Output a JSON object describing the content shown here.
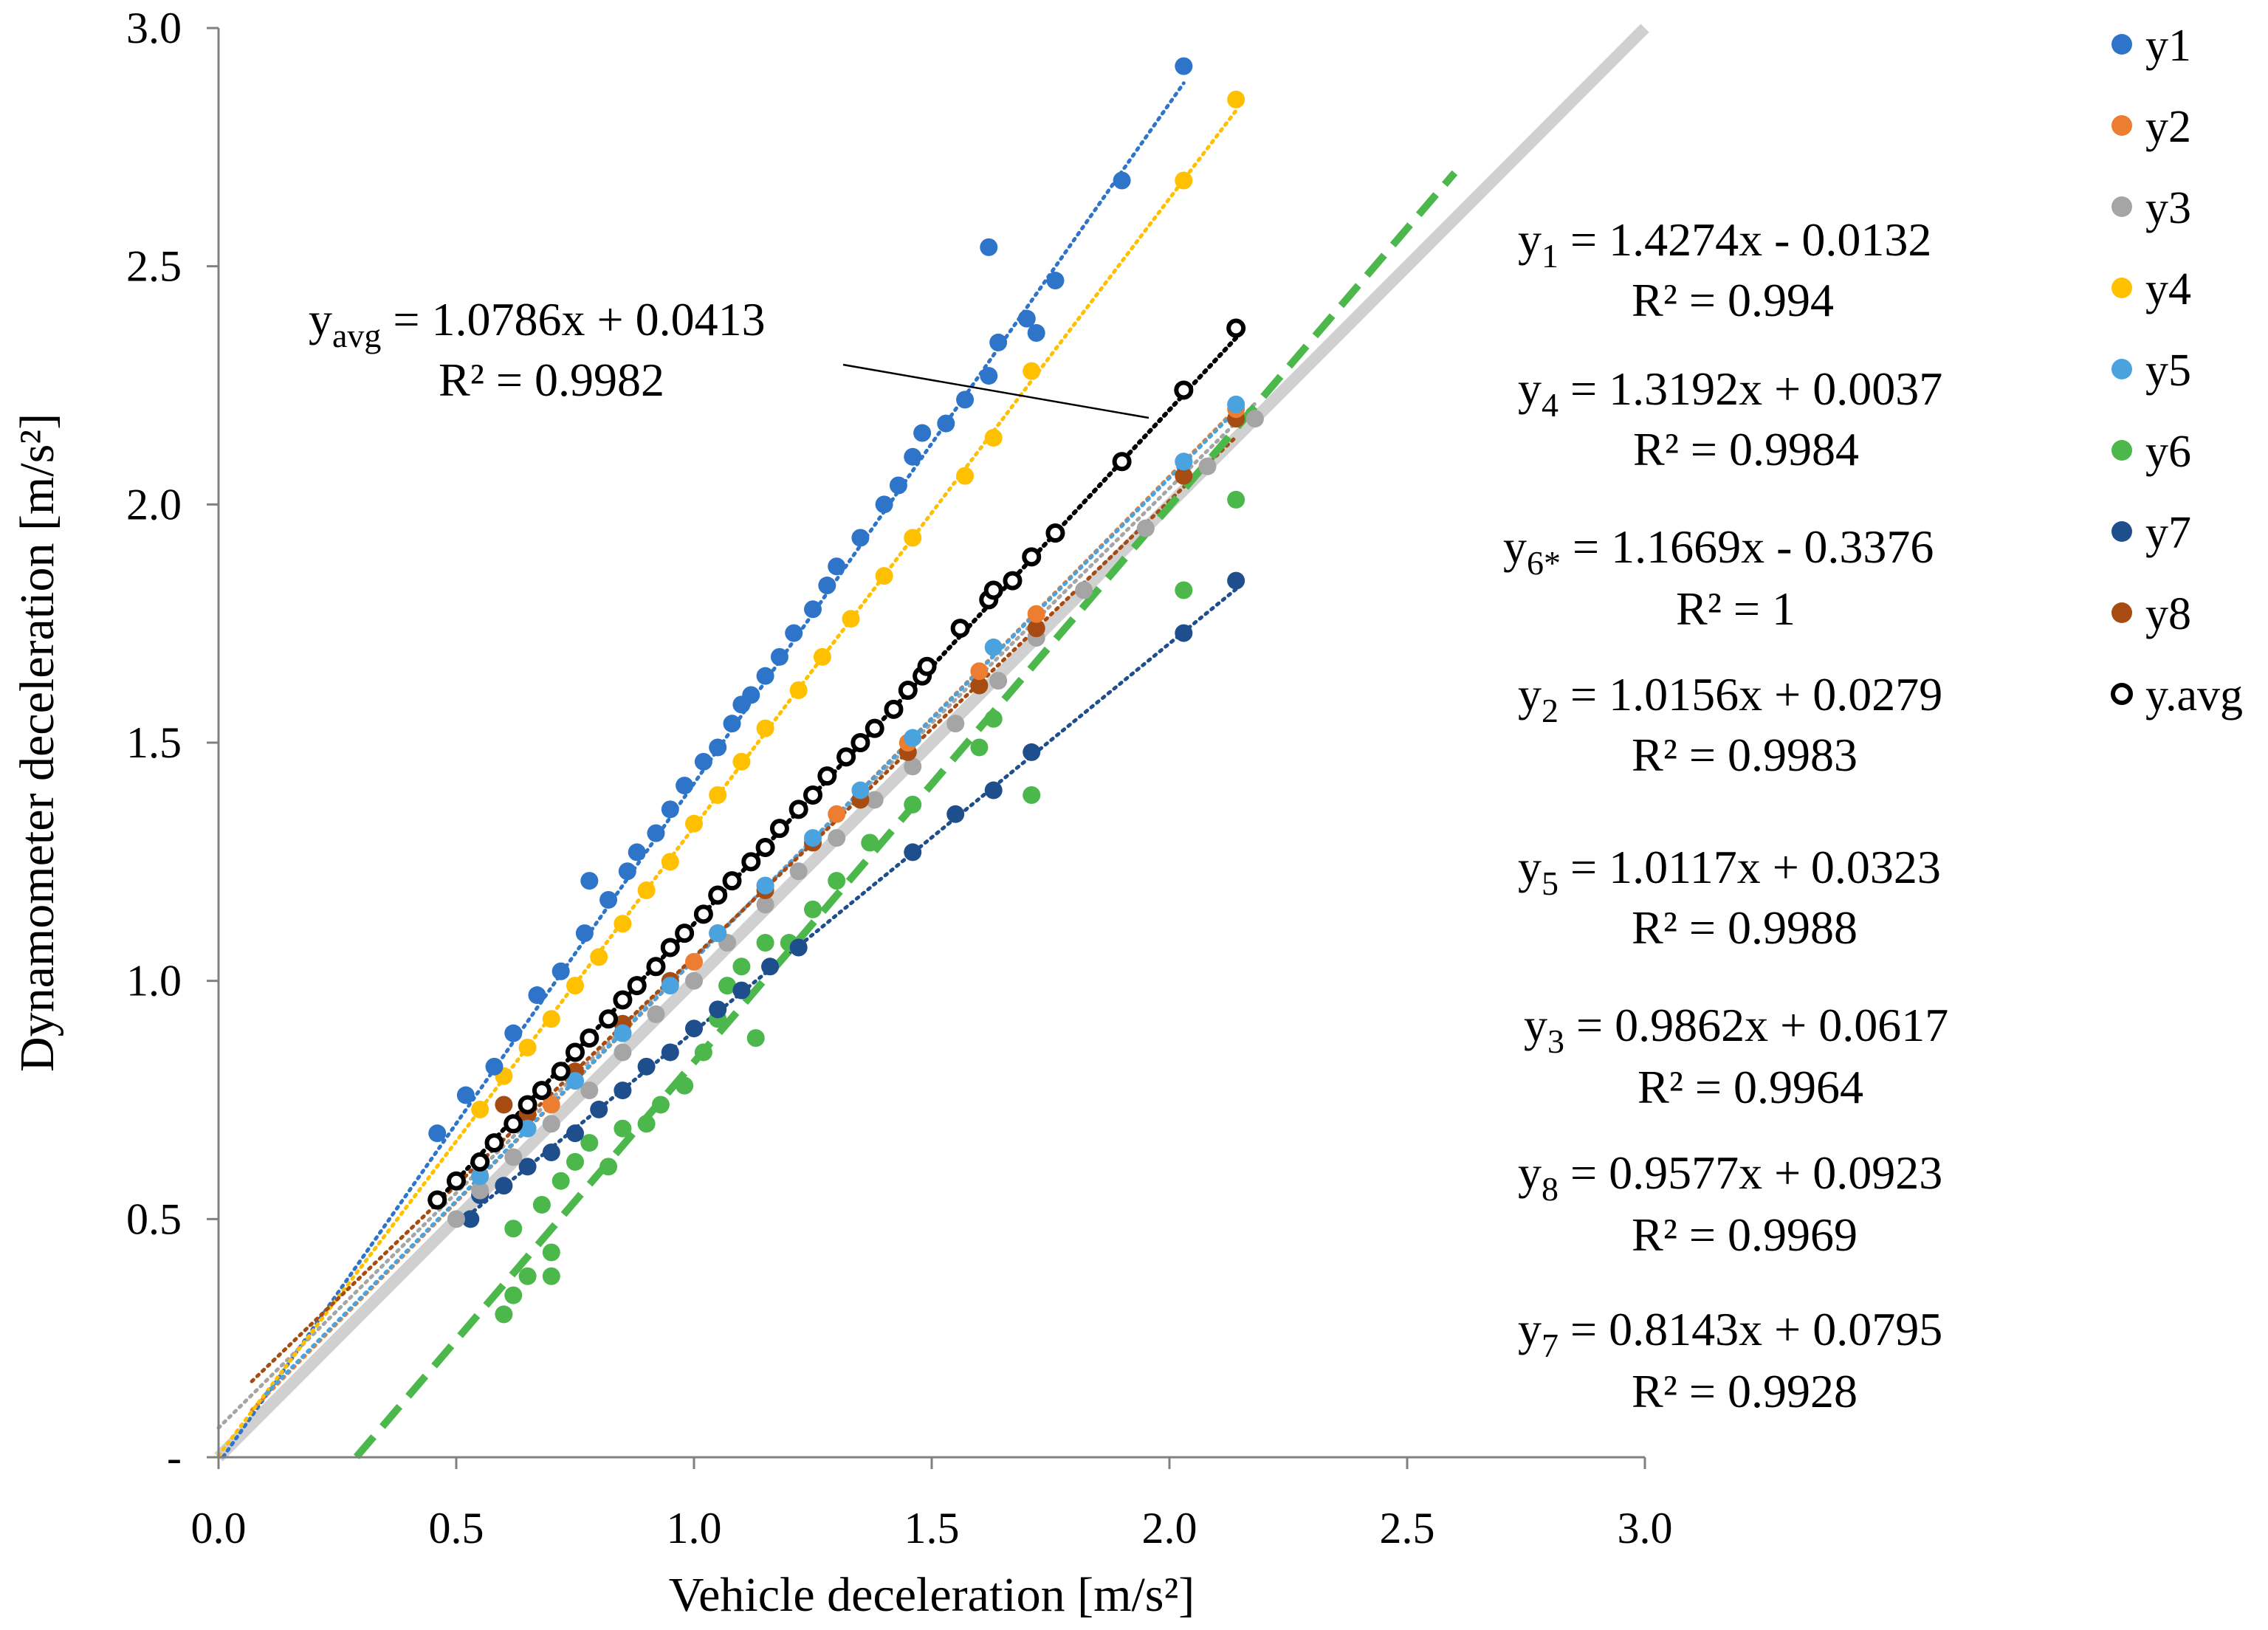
{
  "chart_data": {
    "type": "scatter",
    "xlabel": "Vehicle deceleration  [m/s²]",
    "ylabel": "Dynamometer deceleration [m/s²]",
    "xlim": [
      0,
      3
    ],
    "ylim": [
      0,
      3
    ],
    "xticks": [
      "0.0",
      "0.5",
      "1.0",
      "1.5",
      "2.0",
      "2.5",
      "3.0"
    ],
    "yticks": [
      "-",
      "0.5",
      "1.0",
      "1.5",
      "2.0",
      "2.5",
      "3.0"
    ],
    "grid": false,
    "legend_position": "right",
    "series": [
      {
        "name": "y1",
        "color": "#2E75C9",
        "marker": "filled-circle",
        "slope": 1.4274,
        "intercept": -0.0132,
        "r2": 0.994,
        "points": [
          [
            0.46,
            0.68
          ],
          [
            0.52,
            0.76
          ],
          [
            0.58,
            0.82
          ],
          [
            0.62,
            0.89
          ],
          [
            0.67,
            0.97
          ],
          [
            0.72,
            1.02
          ],
          [
            0.77,
            1.1
          ],
          [
            0.78,
            1.21
          ],
          [
            0.82,
            1.17
          ],
          [
            0.86,
            1.23
          ],
          [
            0.88,
            1.27
          ],
          [
            0.92,
            1.31
          ],
          [
            0.95,
            1.36
          ],
          [
            0.98,
            1.41
          ],
          [
            1.02,
            1.46
          ],
          [
            1.05,
            1.49
          ],
          [
            1.08,
            1.54
          ],
          [
            1.1,
            1.58
          ],
          [
            1.12,
            1.6
          ],
          [
            1.15,
            1.64
          ],
          [
            1.18,
            1.68
          ],
          [
            1.21,
            1.73
          ],
          [
            1.25,
            1.78
          ],
          [
            1.28,
            1.83
          ],
          [
            1.3,
            1.87
          ],
          [
            1.35,
            1.93
          ],
          [
            1.4,
            2.0
          ],
          [
            1.43,
            2.04
          ],
          [
            1.46,
            2.1
          ],
          [
            1.48,
            2.15
          ],
          [
            1.53,
            2.17
          ],
          [
            1.57,
            2.22
          ],
          [
            1.62,
            2.27
          ],
          [
            1.62,
            2.54
          ],
          [
            1.64,
            2.34
          ],
          [
            1.7,
            2.39
          ],
          [
            1.72,
            2.36
          ],
          [
            1.76,
            2.47
          ],
          [
            1.9,
            2.68
          ],
          [
            2.03,
            2.92
          ]
        ]
      },
      {
        "name": "y2",
        "color": "#ED7D31",
        "marker": "filled-circle",
        "slope": 1.0156,
        "intercept": 0.0279,
        "r2": 0.9983,
        "points": [
          [
            0.55,
            0.59
          ],
          [
            0.7,
            0.74
          ],
          [
            0.85,
            0.89
          ],
          [
            1.0,
            1.04
          ],
          [
            1.15,
            1.2
          ],
          [
            1.3,
            1.35
          ],
          [
            1.45,
            1.5
          ],
          [
            1.6,
            1.65
          ],
          [
            1.72,
            1.77
          ],
          [
            2.03,
            2.09
          ],
          [
            2.14,
            2.2
          ]
        ]
      },
      {
        "name": "y3",
        "color": "#A5A5A5",
        "marker": "filled-circle",
        "slope": 0.9862,
        "intercept": 0.0617,
        "r2": 0.9964,
        "points": [
          [
            0.5,
            0.5
          ],
          [
            0.55,
            0.56
          ],
          [
            0.62,
            0.63
          ],
          [
            0.7,
            0.7
          ],
          [
            0.78,
            0.77
          ],
          [
            0.85,
            0.85
          ],
          [
            0.92,
            0.93
          ],
          [
            1.0,
            1.0
          ],
          [
            1.07,
            1.08
          ],
          [
            1.15,
            1.16
          ],
          [
            1.22,
            1.23
          ],
          [
            1.3,
            1.3
          ],
          [
            1.38,
            1.38
          ],
          [
            1.46,
            1.45
          ],
          [
            1.55,
            1.54
          ],
          [
            1.64,
            1.63
          ],
          [
            1.72,
            1.72
          ],
          [
            1.82,
            1.82
          ],
          [
            1.95,
            1.95
          ],
          [
            2.08,
            2.08
          ],
          [
            2.18,
            2.18
          ]
        ]
      },
      {
        "name": "y4",
        "color": "#FFC000",
        "marker": "filled-circle",
        "slope": 1.3192,
        "intercept": 0.0037,
        "r2": 0.9984,
        "points": [
          [
            0.55,
            0.73
          ],
          [
            0.6,
            0.8
          ],
          [
            0.65,
            0.86
          ],
          [
            0.7,
            0.92
          ],
          [
            0.75,
            0.99
          ],
          [
            0.8,
            1.05
          ],
          [
            0.85,
            1.12
          ],
          [
            0.9,
            1.19
          ],
          [
            0.95,
            1.25
          ],
          [
            1.0,
            1.33
          ],
          [
            1.05,
            1.39
          ],
          [
            1.1,
            1.46
          ],
          [
            1.15,
            1.53
          ],
          [
            1.22,
            1.61
          ],
          [
            1.27,
            1.68
          ],
          [
            1.33,
            1.76
          ],
          [
            1.4,
            1.85
          ],
          [
            1.46,
            1.93
          ],
          [
            1.57,
            2.06
          ],
          [
            1.63,
            2.14
          ],
          [
            1.71,
            2.28
          ],
          [
            2.03,
            2.68
          ],
          [
            2.14,
            2.85
          ]
        ]
      },
      {
        "name": "y5",
        "color": "#4AA3DF",
        "marker": "filled-circle",
        "slope": 1.0117,
        "intercept": 0.0323,
        "r2": 0.9988,
        "points": [
          [
            0.55,
            0.59
          ],
          [
            0.65,
            0.69
          ],
          [
            0.75,
            0.79
          ],
          [
            0.85,
            0.89
          ],
          [
            0.95,
            0.99
          ],
          [
            1.05,
            1.1
          ],
          [
            1.15,
            1.2
          ],
          [
            1.25,
            1.3
          ],
          [
            1.35,
            1.4
          ],
          [
            1.46,
            1.51
          ],
          [
            1.63,
            1.7
          ],
          [
            2.03,
            2.09
          ],
          [
            2.14,
            2.21
          ]
        ]
      },
      {
        "name": "y6",
        "color": "#4CB84C",
        "marker": "filled-circle",
        "slope": 1.1669,
        "intercept": -0.3376,
        "r2": 1,
        "note": "y6*",
        "points": [
          [
            0.6,
            0.3
          ],
          [
            0.62,
            0.34
          ],
          [
            0.62,
            0.48
          ],
          [
            0.65,
            0.38
          ],
          [
            0.68,
            0.53
          ],
          [
            0.7,
            0.43
          ],
          [
            0.7,
            0.38
          ],
          [
            0.72,
            0.58
          ],
          [
            0.75,
            0.62
          ],
          [
            0.78,
            0.66
          ],
          [
            0.82,
            0.61
          ],
          [
            0.85,
            0.69
          ],
          [
            0.9,
            0.7
          ],
          [
            0.93,
            0.74
          ],
          [
            0.98,
            0.78
          ],
          [
            1.02,
            0.85
          ],
          [
            1.05,
            0.92
          ],
          [
            1.07,
            0.99
          ],
          [
            1.1,
            1.03
          ],
          [
            1.13,
            0.88
          ],
          [
            1.15,
            1.08
          ],
          [
            1.2,
            1.08
          ],
          [
            1.25,
            1.15
          ],
          [
            1.3,
            1.21
          ],
          [
            1.37,
            1.29
          ],
          [
            1.46,
            1.37
          ],
          [
            1.6,
            1.49
          ],
          [
            1.63,
            1.55
          ],
          [
            1.71,
            1.39
          ],
          [
            2.03,
            1.82
          ],
          [
            2.14,
            2.01
          ]
        ]
      },
      {
        "name": "y7",
        "color": "#1F4E8C",
        "marker": "filled-circle",
        "slope": 0.8143,
        "intercept": 0.0795,
        "r2": 0.9928,
        "points": [
          [
            0.53,
            0.5
          ],
          [
            0.55,
            0.55
          ],
          [
            0.6,
            0.57
          ],
          [
            0.65,
            0.61
          ],
          [
            0.7,
            0.64
          ],
          [
            0.75,
            0.68
          ],
          [
            0.8,
            0.73
          ],
          [
            0.85,
            0.77
          ],
          [
            0.9,
            0.82
          ],
          [
            0.95,
            0.85
          ],
          [
            1.0,
            0.9
          ],
          [
            1.05,
            0.94
          ],
          [
            1.1,
            0.98
          ],
          [
            1.16,
            1.03
          ],
          [
            1.22,
            1.07
          ],
          [
            1.46,
            1.27
          ],
          [
            1.55,
            1.35
          ],
          [
            1.63,
            1.4
          ],
          [
            1.71,
            1.48
          ],
          [
            2.03,
            1.73
          ],
          [
            2.14,
            1.84
          ]
        ]
      },
      {
        "name": "y8",
        "color": "#A64B12",
        "marker": "filled-circle",
        "slope": 0.9577,
        "intercept": 0.0923,
        "r2": 0.9969,
        "points": [
          [
            0.6,
            0.74
          ],
          [
            0.65,
            0.72
          ],
          [
            0.75,
            0.81
          ],
          [
            0.85,
            0.91
          ],
          [
            0.95,
            1.0
          ],
          [
            1.05,
            1.1
          ],
          [
            1.15,
            1.19
          ],
          [
            1.25,
            1.29
          ],
          [
            1.35,
            1.38
          ],
          [
            1.45,
            1.48
          ],
          [
            1.6,
            1.62
          ],
          [
            1.72,
            1.74
          ],
          [
            2.03,
            2.06
          ],
          [
            2.14,
            2.18
          ]
        ]
      },
      {
        "name": "y.avg",
        "color": "#000000",
        "marker": "open-circle",
        "slope": 1.0786,
        "intercept": 0.0413,
        "r2": 0.9982,
        "points": [
          [
            0.46,
            0.54
          ],
          [
            0.5,
            0.58
          ],
          [
            0.55,
            0.62
          ],
          [
            0.58,
            0.66
          ],
          [
            0.62,
            0.7
          ],
          [
            0.65,
            0.74
          ],
          [
            0.68,
            0.77
          ],
          [
            0.72,
            0.81
          ],
          [
            0.75,
            0.85
          ],
          [
            0.78,
            0.88
          ],
          [
            0.82,
            0.92
          ],
          [
            0.85,
            0.96
          ],
          [
            0.88,
            0.99
          ],
          [
            0.92,
            1.03
          ],
          [
            0.95,
            1.07
          ],
          [
            0.98,
            1.1
          ],
          [
            1.02,
            1.14
          ],
          [
            1.05,
            1.18
          ],
          [
            1.08,
            1.21
          ],
          [
            1.12,
            1.25
          ],
          [
            1.15,
            1.28
          ],
          [
            1.18,
            1.32
          ],
          [
            1.22,
            1.36
          ],
          [
            1.25,
            1.39
          ],
          [
            1.28,
            1.43
          ],
          [
            1.32,
            1.47
          ],
          [
            1.35,
            1.5
          ],
          [
            1.38,
            1.53
          ],
          [
            1.42,
            1.57
          ],
          [
            1.45,
            1.61
          ],
          [
            1.48,
            1.64
          ],
          [
            1.49,
            1.66
          ],
          [
            1.56,
            1.74
          ],
          [
            1.62,
            1.8
          ],
          [
            1.63,
            1.82
          ],
          [
            1.67,
            1.84
          ],
          [
            1.71,
            1.89
          ],
          [
            1.76,
            1.94
          ],
          [
            1.9,
            2.09
          ],
          [
            2.03,
            2.24
          ],
          [
            2.14,
            2.37
          ]
        ]
      }
    ],
    "reference_line": {
      "name": "y = x",
      "color": "#D0D0D0",
      "from": [
        0,
        0
      ],
      "to": [
        3,
        3
      ]
    },
    "y6_dashed_line": {
      "color": "#4CB84C",
      "from_x": 0.29,
      "to_x": 2.6
    },
    "annotations": [
      {
        "id": "avg",
        "label": "yavg = 1.0786x + 0.0413",
        "sym": "y",
        "sub": "avg",
        "eq": " = 1.0786x + 0.0413",
        "r2": "R² = 0.9982"
      },
      {
        "id": "e1",
        "sym": "y",
        "sub": "1",
        "eq": " = 1.4274x - 0.0132",
        "r2": "R² = 0.994"
      },
      {
        "id": "e4",
        "sym": "y",
        "sub": "4",
        "eq": " = 1.3192x + 0.0037",
        "r2": "R² = 0.9984"
      },
      {
        "id": "e6",
        "sym": "y",
        "sub": "6*",
        "eq": " = 1.1669x - 0.3376",
        "r2": "R² = 1"
      },
      {
        "id": "e2",
        "sym": "y",
        "sub": "2",
        "eq": " = 1.0156x + 0.0279",
        "r2": "R² = 0.9983"
      },
      {
        "id": "e5",
        "sym": "y",
        "sub": "5",
        "eq": " = 1.0117x + 0.0323",
        "r2": "R² = 0.9988"
      },
      {
        "id": "e3",
        "sym": "y",
        "sub": "3",
        "eq": " = 0.9862x + 0.0617",
        "r2": "R² = 0.9964"
      },
      {
        "id": "e8",
        "sym": "y",
        "sub": "8",
        "eq": " = 0.9577x + 0.0923",
        "r2": "R² = 0.9969"
      },
      {
        "id": "e7",
        "sym": "y",
        "sub": "7",
        "eq": " = 0.8143x + 0.0795",
        "r2": "R² = 0.9928"
      }
    ]
  }
}
